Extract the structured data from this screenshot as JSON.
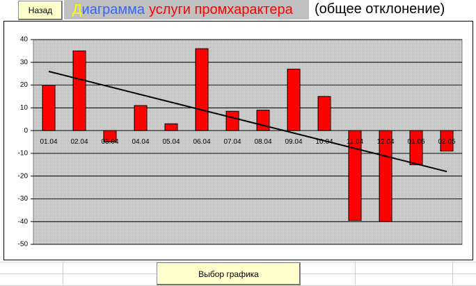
{
  "header": {
    "back_button": "Назад",
    "title_parts": [
      {
        "text": "Д",
        "color": "#ffff00"
      },
      {
        "text": "иаграмма",
        "color": "#3366ff"
      },
      {
        "text": "услуги промхарактера",
        "color": "#ff0000"
      }
    ],
    "subtitle": "(общее отклонение)"
  },
  "footer": {
    "button": "Выбор графика"
  },
  "chart_data": {
    "type": "bar",
    "categories": [
      "01.04",
      "02.04",
      "03.04",
      "04.04",
      "05.04",
      "06.04",
      "07.04",
      "08.04",
      "09.04",
      "10.04",
      "11.04",
      "12.04",
      "01.05",
      "02.05"
    ],
    "values": [
      20,
      35,
      -5,
      11,
      3,
      36,
      8.5,
      9,
      27,
      15,
      -39.5,
      -40,
      -15,
      -9
    ],
    "color": "#ff0000",
    "trendline": [
      26,
      -18
    ],
    "ylim": [
      -50,
      40
    ],
    "yticks": [
      -50,
      -40,
      -30,
      -20,
      -10,
      0,
      10,
      20,
      30,
      40
    ],
    "grid": true
  }
}
